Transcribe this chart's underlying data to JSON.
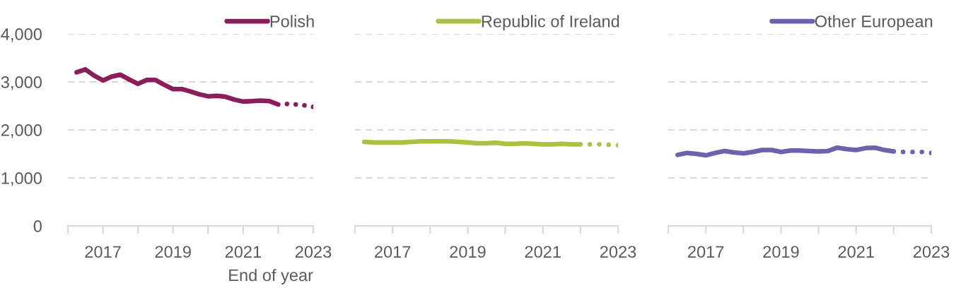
{
  "chart_data": [
    {
      "type": "line",
      "xlabel": "End of year",
      "xlim": [
        2016,
        2023
      ],
      "xticks": [
        {
          "value": 2016,
          "label": null
        },
        2017,
        {
          "value": 2018,
          "label": null
        },
        2019,
        {
          "value": 2020,
          "label": null
        },
        2021,
        {
          "value": 2022,
          "label": null
        },
        2023
      ],
      "ylim": [
        0,
        4000
      ],
      "yticks": [
        0,
        {
          "value": 1000,
          "label": "1,000"
        },
        {
          "value": 2000,
          "label": "2,000"
        },
        {
          "value": 3000,
          "label": "3,000"
        },
        {
          "value": 4000,
          "label": "4,000"
        }
      ],
      "grid": "y",
      "legend": "top right",
      "series": [
        {
          "name": "Polish",
          "color": "#8c1d5b",
          "x": [
            2016.25,
            2016.5,
            2016.75,
            2017,
            2017.25,
            2017.5,
            2017.75,
            2018,
            2018.25,
            2018.5,
            2018.75,
            2019,
            2019.25,
            2019.5,
            2019.75,
            2020,
            2020.25,
            2020.5,
            2020.75,
            2021,
            2021.25,
            2021.5,
            2021.75,
            2022
          ],
          "values": [
            3200,
            3260,
            3130,
            3030,
            3110,
            3150,
            3050,
            2960,
            3040,
            3040,
            2940,
            2850,
            2850,
            2800,
            2740,
            2700,
            2710,
            2690,
            2630,
            2590,
            2600,
            2610,
            2600,
            2530
          ]
        },
        {
          "color": "#8c1d5b",
          "line_style": "dotted",
          "x": [
            2022.25,
            2022.5,
            2022.75,
            2023
          ],
          "values": [
            2540,
            2530,
            2510,
            2480
          ]
        }
      ]
    },
    {
      "type": "line",
      "xlim": [
        2016,
        2023
      ],
      "xticks": [
        {
          "value": 2016,
          "label": null
        },
        2017,
        {
          "value": 2018,
          "label": null
        },
        2019,
        {
          "value": 2020,
          "label": null
        },
        2021,
        {
          "value": 2022,
          "label": null
        },
        2023
      ],
      "ylim": [
        0,
        4000
      ],
      "yticks": [
        0,
        1000,
        2000,
        3000,
        4000
      ],
      "grid": "y",
      "legend": "top right",
      "tick_labels": "x",
      "series": [
        {
          "name": "Republic of Ireland",
          "color": "#a9c23f",
          "x": [
            2016.25,
            2016.5,
            2016.75,
            2017,
            2017.25,
            2017.5,
            2017.75,
            2018,
            2018.25,
            2018.5,
            2018.75,
            2019,
            2019.25,
            2019.5,
            2019.75,
            2020,
            2020.25,
            2020.5,
            2020.75,
            2021,
            2021.25,
            2021.5,
            2021.75,
            2022
          ],
          "values": [
            1750,
            1740,
            1740,
            1740,
            1740,
            1750,
            1760,
            1760,
            1760,
            1760,
            1750,
            1740,
            1720,
            1720,
            1730,
            1710,
            1710,
            1720,
            1710,
            1700,
            1700,
            1710,
            1700,
            1700
          ]
        },
        {
          "color": "#a9c23f",
          "line_style": "dotted",
          "x": [
            2022.25,
            2022.5,
            2022.75,
            2023
          ],
          "values": [
            1700,
            1700,
            1690,
            1680
          ]
        }
      ]
    },
    {
      "type": "line",
      "xlim": [
        2016,
        2023
      ],
      "xticks": [
        {
          "value": 2016,
          "label": null
        },
        2017,
        {
          "value": 2018,
          "label": null
        },
        2019,
        {
          "value": 2020,
          "label": null
        },
        2021,
        {
          "value": 2022,
          "label": null
        },
        2023
      ],
      "ylim": [
        0,
        4000
      ],
      "yticks": [
        0,
        1000,
        2000,
        3000,
        4000
      ],
      "grid": "y",
      "legend": "top right",
      "tick_labels": "x",
      "series": [
        {
          "name": "Other European",
          "color": "#6b62ad",
          "x": [
            2016.25,
            2016.5,
            2016.75,
            2017,
            2017.25,
            2017.5,
            2017.75,
            2018,
            2018.25,
            2018.5,
            2018.75,
            2019,
            2019.25,
            2019.5,
            2019.75,
            2020,
            2020.25,
            2020.5,
            2020.75,
            2021,
            2021.25,
            2021.5,
            2021.75,
            2022
          ],
          "values": [
            1480,
            1520,
            1500,
            1470,
            1520,
            1560,
            1530,
            1510,
            1540,
            1580,
            1580,
            1540,
            1570,
            1570,
            1560,
            1550,
            1560,
            1630,
            1600,
            1580,
            1620,
            1630,
            1580,
            1550
          ]
        },
        {
          "color": "#6b62ad",
          "line_style": "dotted",
          "x": [
            2022.25,
            2022.5,
            2022.75,
            2023
          ],
          "values": [
            1540,
            1540,
            1540,
            1520
          ]
        }
      ]
    }
  ]
}
